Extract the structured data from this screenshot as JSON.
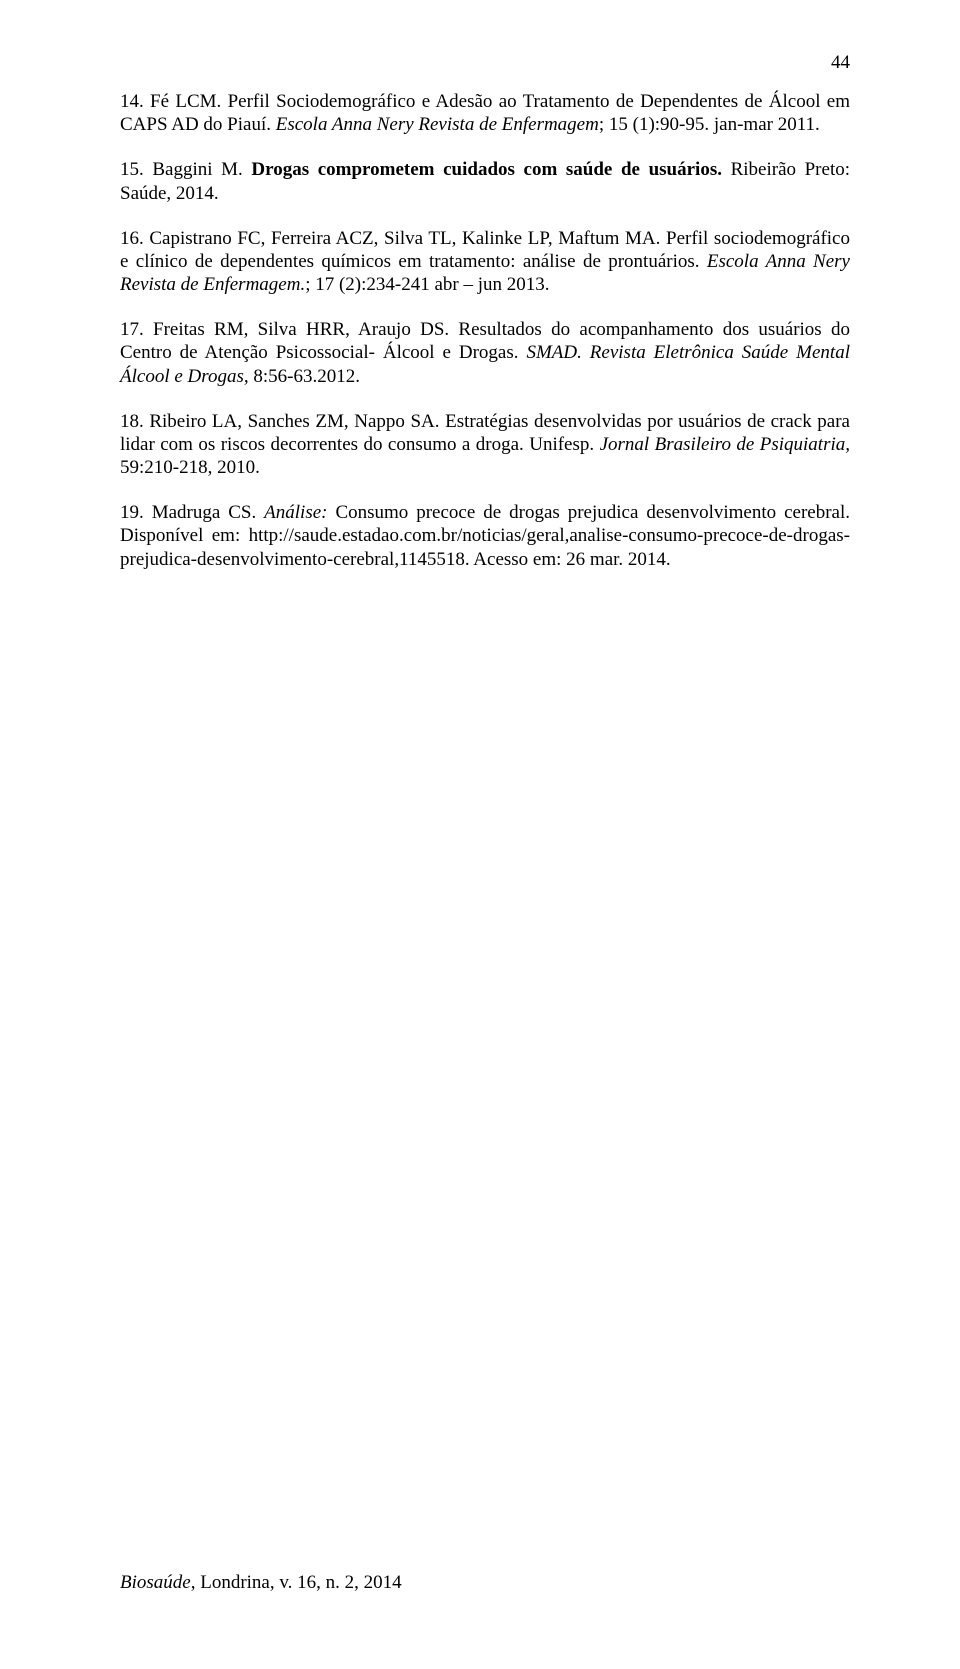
{
  "page": {
    "number": "44",
    "background_color": "#ffffff",
    "text_color": "#000000",
    "font_family": "Times New Roman",
    "body_fontsize": 19
  },
  "references": {
    "r14": {
      "prefix": "14. Fé LCM. Perfil Sociodemográfico e Adesão ao Tratamento de Dependentes de Álcool em CAPS AD do Piauí. ",
      "italic": "Escola Anna Nery Revista de Enfermagem",
      "suffix": "; 15 (1):90-95. jan-mar 2011."
    },
    "r15": {
      "prefix": "15. Baggini M. ",
      "bold": "Drogas comprometem cuidados com saúde de usuários.",
      "suffix": " Ribeirão Preto: Saúde, 2014."
    },
    "r16": {
      "prefix": "16. Capistrano FC, Ferreira ACZ, Silva TL, Kalinke LP, Maftum MA. Perfil sociodemográfico e clínico de dependentes químicos em tratamento: análise de prontuários. ",
      "italic": "Escola Anna Nery Revista de Enfermagem.",
      "suffix": "; 17 (2):234-241 abr – jun 2013."
    },
    "r17": {
      "prefix": "17. Freitas RM, Silva HRR, Araujo DS. Resultados do acompanhamento dos usuários do Centro de Atenção Psicossocial- Álcool e Drogas. ",
      "italic": "SMAD. Revista Eletrônica Saúde Mental Álcool e Drogas,",
      "suffix": " 8:56-63.2012."
    },
    "r18": {
      "prefix": "18. Ribeiro LA, Sanches ZM, Nappo SA. Estratégias desenvolvidas por usuários de crack para lidar com os riscos decorrentes do consumo a droga. Unifesp. ",
      "italic": "Jornal Brasileiro de Psiquiatria,",
      "suffix": " 59:210-218, 2010."
    },
    "r19": {
      "prefix": "19. Madruga CS. ",
      "italic": "Análise:",
      "suffix": " Consumo precoce de drogas prejudica desenvolvimento cerebral. Disponível em: http://saude.estadao.com.br/noticias/geral,analise-consumo-precoce-de-drogas-prejudica-desenvolvimento-cerebral,1145518. Acesso em: 26 mar. 2014."
    }
  },
  "footer": {
    "italic": "Biosaúde",
    "rest": ", Londrina, v. 16, n. 2, 2014"
  }
}
